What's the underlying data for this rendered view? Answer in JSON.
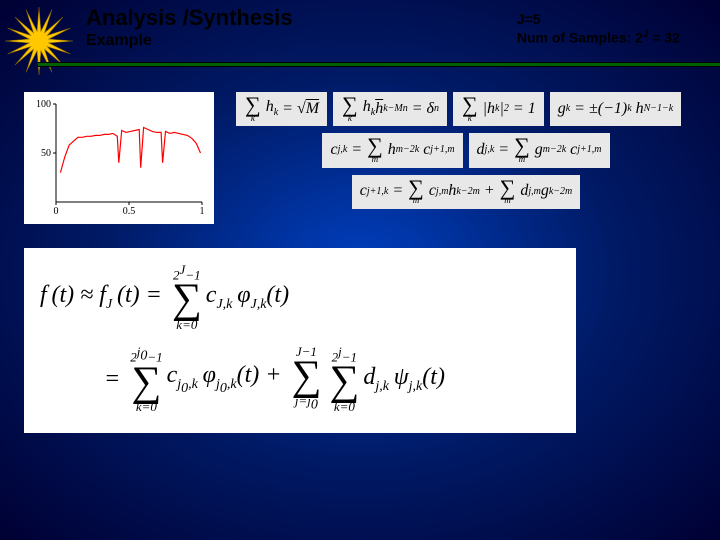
{
  "header": {
    "title": "Analysis /Synthesis",
    "subtitle": "Example",
    "info_line1": "J=5",
    "info_line2_prefix": "Num of Samples: 2",
    "info_line2_sup": "J",
    "info_line2_suffix": " = 32"
  },
  "star": {
    "fill": "#ffc800",
    "stroke": "#806000",
    "points": 16,
    "outer_r": 34,
    "inner_r": 10
  },
  "chart": {
    "type": "line",
    "width": 180,
    "height": 120,
    "background_color": "#ffffff",
    "axis_color": "#000000",
    "line_color": "#ff0000",
    "line_width": 1.2,
    "xlim": [
      0,
      1
    ],
    "ylim": [
      0,
      100
    ],
    "xticks": [
      0,
      0.5,
      1
    ],
    "yticks": [
      50,
      100
    ],
    "xtick_labels": [
      "0",
      "0.5",
      "1"
    ],
    "ytick_labels": [
      "50",
      "100"
    ],
    "tick_fontsize": 10,
    "data_x": [
      0.03,
      0.06,
      0.09,
      0.12,
      0.15,
      0.18,
      0.21,
      0.24,
      0.27,
      0.3,
      0.33,
      0.36,
      0.39,
      0.42,
      0.43,
      0.45,
      0.48,
      0.51,
      0.54,
      0.57,
      0.58,
      0.6,
      0.63,
      0.66,
      0.69,
      0.72,
      0.73,
      0.75,
      0.78,
      0.81,
      0.84,
      0.87,
      0.9,
      0.93,
      0.96,
      0.99
    ],
    "data_y": [
      30,
      46,
      58,
      62,
      66,
      66,
      67,
      67,
      68,
      68,
      69,
      69,
      70,
      67,
      40,
      73,
      71,
      72,
      73,
      74,
      35,
      76,
      74,
      72,
      71,
      71,
      40,
      72,
      70,
      71,
      70,
      69,
      68,
      65,
      60,
      50
    ]
  },
  "formulas": {
    "row1": [
      "Σₖ hₖ = √M",
      "Σₖ hₖ h̄ₖ₋Mₙ = δₙ",
      "Σₖ |hₖ|² = 1",
      "gₖ = ±(−1)ᵏ hₙ₋₁₋ₖ"
    ],
    "row2": [
      "c_{j,k} = Σₘ hₘ₋₂ₖ c_{j+1,m}",
      "d_{j,k} = Σₘ gₘ₋₂ₖ c_{j+1,m}"
    ],
    "row3": [
      "c_{j+1,k} = Σₘ c_{j,m} hₖ₋₂ₘ + Σₘ d_{j,m} gₖ₋₂ₘ"
    ]
  },
  "big_formula": {
    "line1_lhs": "f(t) ≈ f_J(t) = ",
    "line1_sum_top": "2^J − 1",
    "line1_sum_bot": "k=0",
    "line1_rhs": "c_{J,k} φ_{J,k}(t)",
    "line2_eq": "= ",
    "line2_sum1_top": "2^{j₀}−1",
    "line2_sum1_bot": "k=0",
    "line2_term1": "c_{j₀,k} φ_{j₀,k}(t) + ",
    "line2_sum2_top": "J−1",
    "line2_sum2_bot": "j=j₀",
    "line2_sum3_top": "2^j−1",
    "line2_sum3_bot": "k=0",
    "line2_term2": "d_{j,k} ψ_{j,k}(t)"
  },
  "colors": {
    "formula_bg": "#e8e8e8",
    "panel_bg": "#ffffff"
  }
}
